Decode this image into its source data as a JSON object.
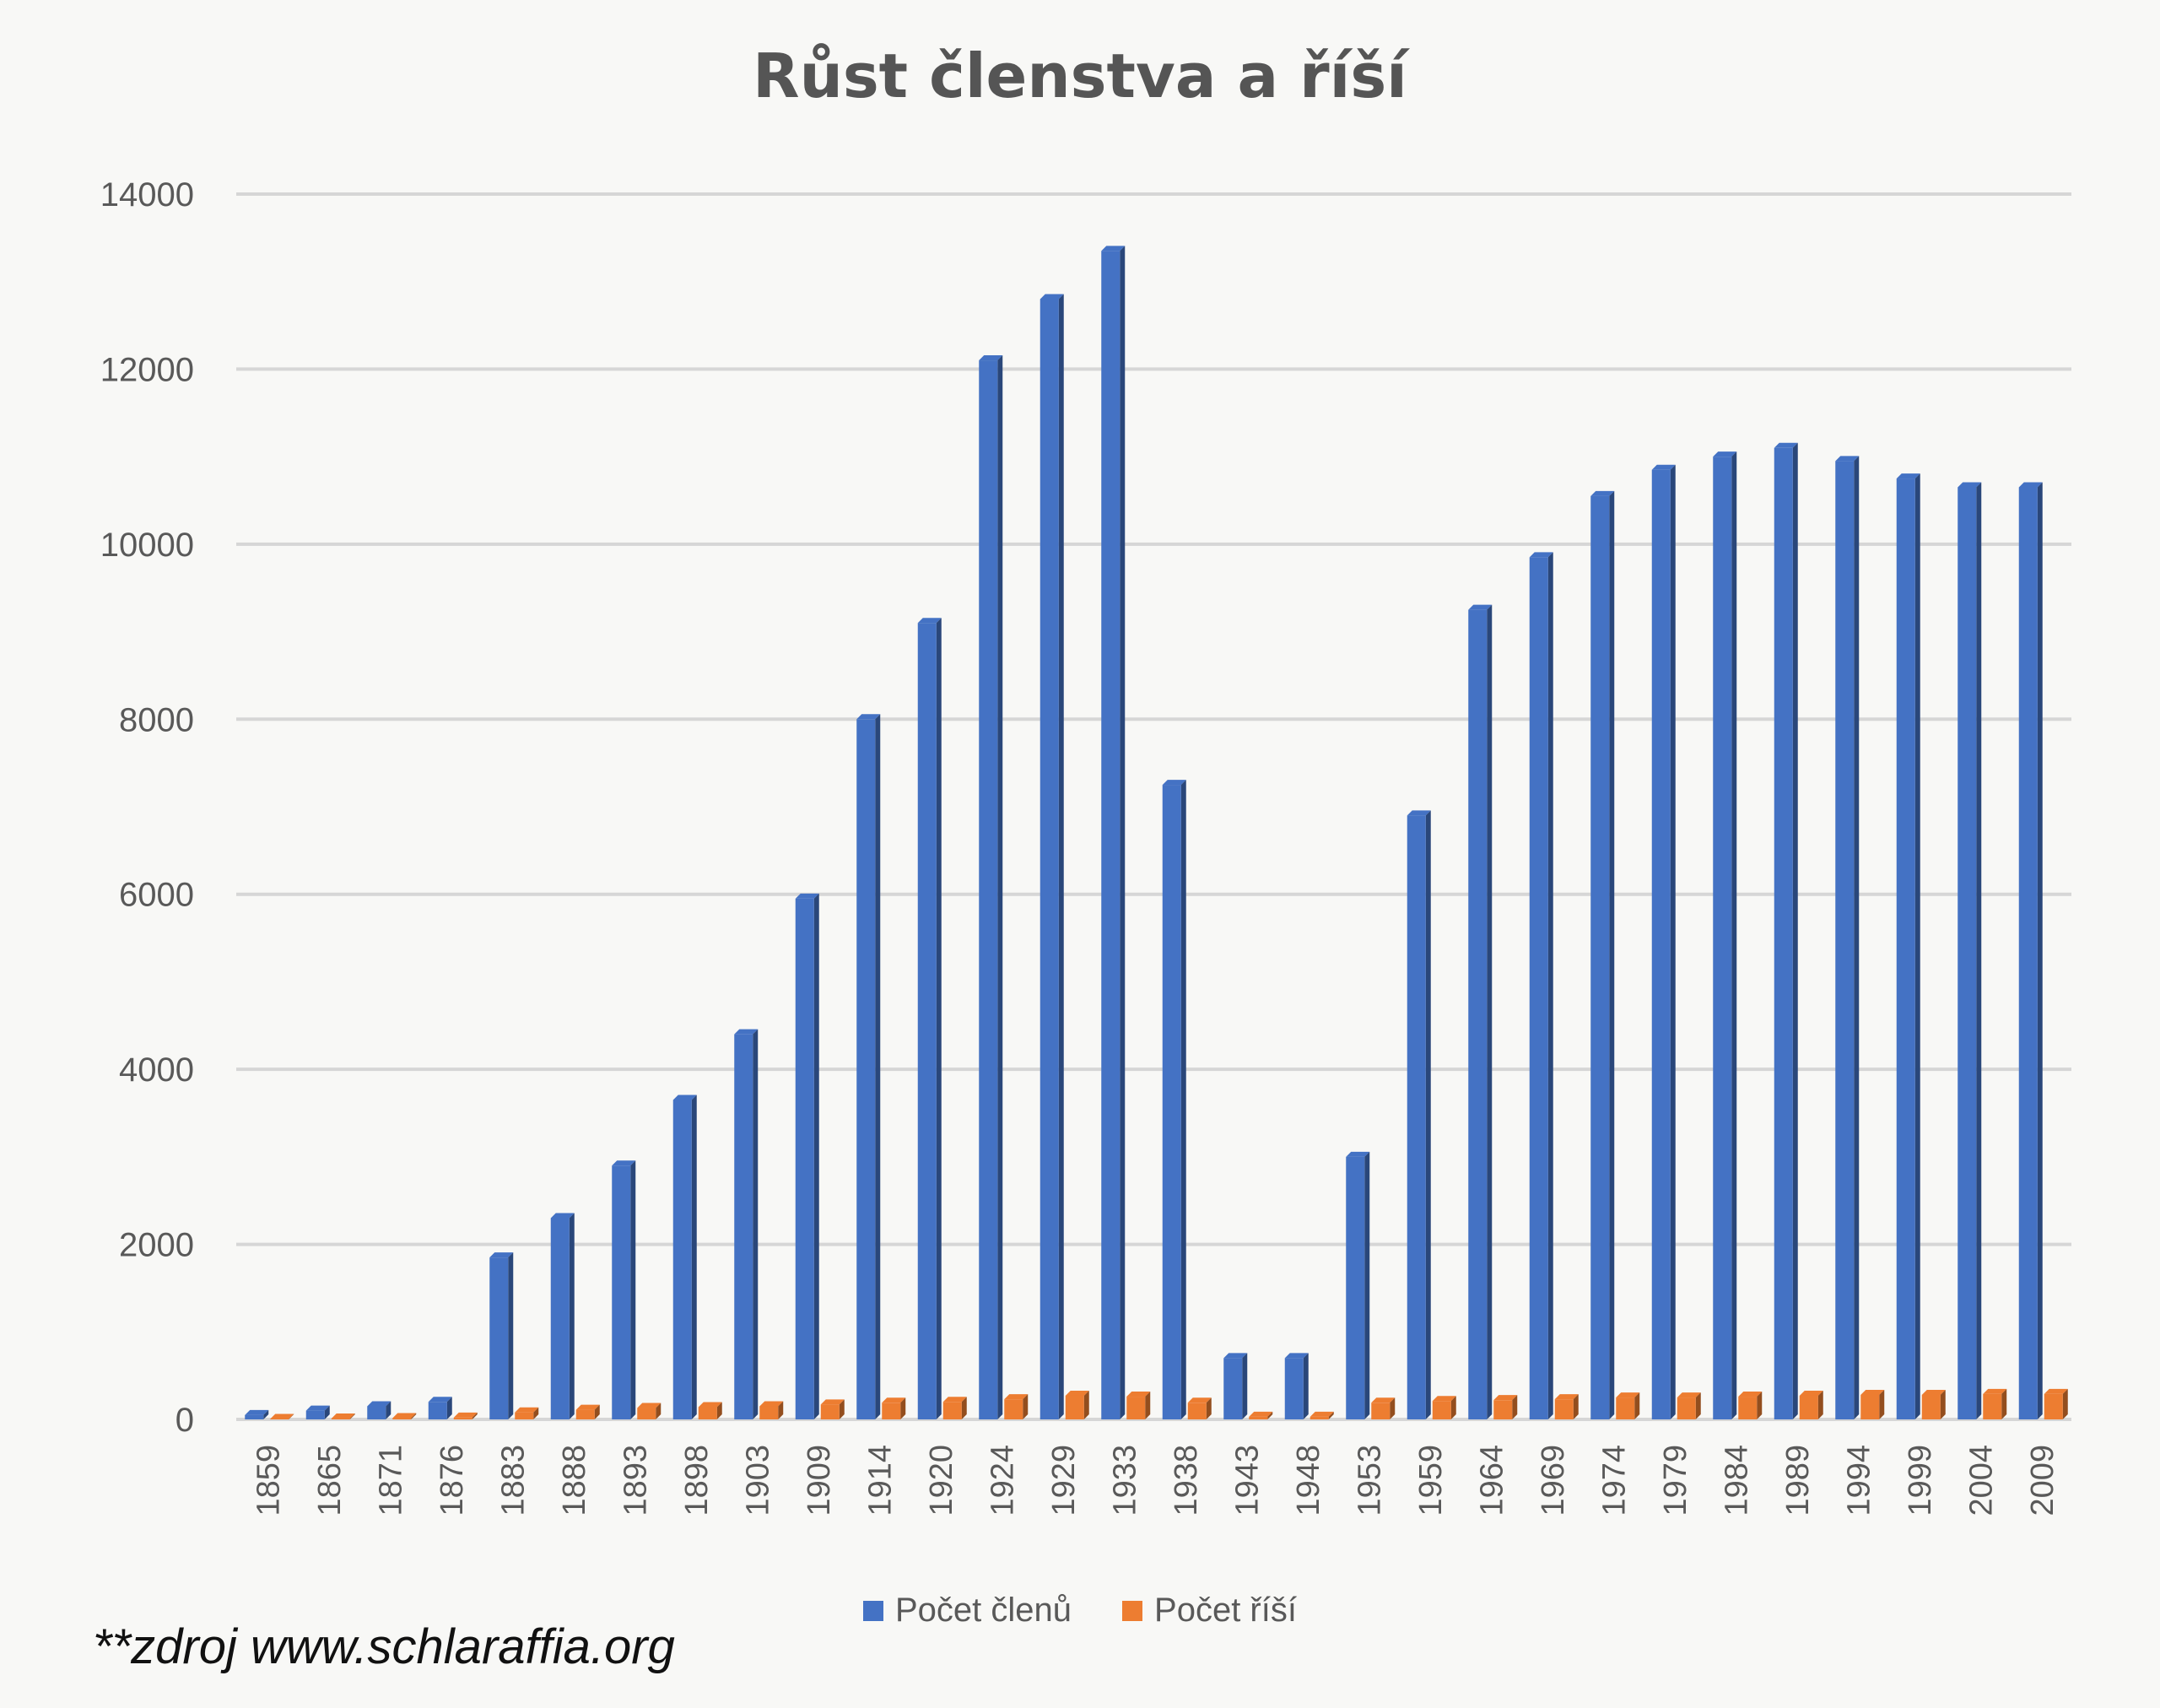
{
  "chart_data": {
    "type": "bar",
    "title": "Růst členstva a říší",
    "xlabel": "",
    "ylabel": "",
    "ylim": [
      0,
      14000
    ],
    "yticks": [
      0,
      2000,
      4000,
      6000,
      8000,
      10000,
      12000,
      14000
    ],
    "grid": true,
    "legend_position": "bottom",
    "categories": [
      "1859",
      "1865",
      "1871",
      "1876",
      "1883",
      "1888",
      "1893",
      "1898",
      "1903",
      "1909",
      "1914",
      "1920",
      "1924",
      "1929",
      "1933",
      "1938",
      "1943",
      "1948",
      "1953",
      "1959",
      "1964",
      "1969",
      "1974",
      "1979",
      "1984",
      "1989",
      "1994",
      "1999",
      "2004",
      "2009"
    ],
    "series": [
      {
        "name": "Počet členů",
        "color": "#4472c4",
        "values": [
          50,
          100,
          150,
          200,
          1850,
          2300,
          2900,
          3650,
          4400,
          5950,
          8000,
          9100,
          12100,
          12800,
          13350,
          7250,
          700,
          700,
          3000,
          6900,
          9250,
          9850,
          10550,
          10850,
          11000,
          11100,
          10950,
          10750,
          10650,
          10650
        ]
      },
      {
        "name": "Počet říší",
        "color": "#ed7d31",
        "values": [
          5,
          10,
          15,
          20,
          80,
          110,
          130,
          140,
          150,
          170,
          190,
          200,
          230,
          270,
          260,
          190,
          30,
          30,
          190,
          210,
          220,
          230,
          250,
          250,
          260,
          270,
          280,
          280,
          290,
          290
        ]
      }
    ]
  },
  "source_note": "**zdroj www.schlaraffia.org"
}
